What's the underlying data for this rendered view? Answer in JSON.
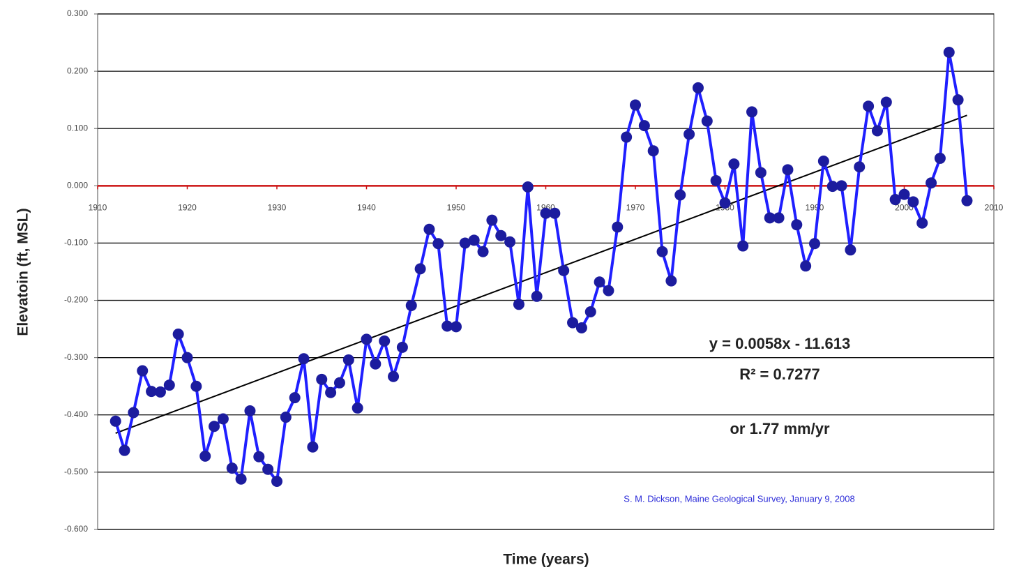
{
  "chart_data": {
    "type": "line",
    "x_label": "Time (years)",
    "y_label": "Elevatoin (ft, MSL)",
    "x": [
      1912,
      1913,
      1914,
      1915,
      1916,
      1917,
      1918,
      1919,
      1920,
      1921,
      1922,
      1923,
      1924,
      1925,
      1926,
      1927,
      1928,
      1929,
      1930,
      1931,
      1932,
      1933,
      1934,
      1935,
      1936,
      1937,
      1938,
      1939,
      1940,
      1941,
      1942,
      1943,
      1944,
      1945,
      1946,
      1947,
      1948,
      1949,
      1950,
      1951,
      1952,
      1953,
      1954,
      1955,
      1956,
      1957,
      1958,
      1959,
      1960,
      1961,
      1962,
      1963,
      1964,
      1965,
      1966,
      1967,
      1968,
      1969,
      1970,
      1971,
      1972,
      1973,
      1974,
      1975,
      1976,
      1977,
      1978,
      1979,
      1980,
      1981,
      1982,
      1983,
      1984,
      1985,
      1986,
      1987,
      1988,
      1989,
      1990,
      1991,
      1992,
      1993,
      1994,
      1995,
      1996,
      1997,
      1998,
      1999,
      2000,
      2001,
      2002,
      2003,
      2004,
      2005,
      2006,
      2007
    ],
    "series": [
      {
        "color": "#1f1fff",
        "marker_color": "#1c1c9e",
        "values": [
          -0.411,
          -0.462,
          -0.396,
          -0.323,
          -0.359,
          -0.36,
          -0.348,
          -0.259,
          -0.3,
          -0.35,
          -0.472,
          -0.42,
          -0.407,
          -0.493,
          -0.512,
          -0.393,
          -0.473,
          -0.495,
          -0.516,
          -0.404,
          -0.37,
          -0.302,
          -0.456,
          -0.338,
          -0.361,
          -0.344,
          -0.304,
          -0.388,
          -0.268,
          -0.311,
          -0.271,
          -0.333,
          -0.282,
          -0.209,
          -0.145,
          -0.076,
          -0.101,
          -0.245,
          -0.246,
          -0.1,
          -0.095,
          -0.115,
          -0.06,
          -0.087,
          -0.098,
          -0.207,
          -0.002,
          -0.193,
          -0.048,
          -0.048,
          -0.148,
          -0.239,
          -0.248,
          -0.22,
          -0.168,
          -0.183,
          -0.072,
          0.085,
          0.141,
          0.105,
          0.061,
          -0.115,
          -0.166,
          -0.016,
          0.09,
          0.171,
          0.113,
          0.009,
          -0.03,
          0.038,
          -0.105,
          0.129,
          0.023,
          -0.056,
          -0.056,
          0.028,
          -0.068,
          -0.14,
          -0.101,
          0.043,
          -0.001,
          0.0,
          -0.112,
          0.033,
          0.139,
          0.096,
          0.146,
          -0.024,
          -0.015,
          -0.028,
          -0.065,
          0.005,
          0.048,
          0.233,
          0.15,
          -0.026
        ]
      }
    ],
    "trendline": {
      "color": "#000000",
      "x": [
        1912,
        2007
      ],
      "values": [
        -0.432,
        0.123
      ]
    },
    "annotations": [
      "y = 0.0058x - 11.613",
      "R² = 0.7277",
      "or 1.77 mm/yr"
    ],
    "credit": "S. M. Dickson, Maine Geological Survey, January 9, 2008",
    "xlim": [
      1910,
      2010
    ],
    "xticks": [
      1910,
      1920,
      1930,
      1940,
      1950,
      1960,
      1970,
      1980,
      1990,
      2000,
      2010
    ],
    "ylim": [
      -0.6,
      0.3
    ],
    "yticks": [
      {
        "value": -0.6,
        "label": "-0.600"
      },
      {
        "value": -0.5,
        "label": "-0.500"
      },
      {
        "value": -0.4,
        "label": "-0.400"
      },
      {
        "value": -0.3,
        "label": "-0.300"
      },
      {
        "value": -0.2,
        "label": "-0.200"
      },
      {
        "value": -0.1,
        "label": "-0.100"
      },
      {
        "value": 0,
        "label": "0.000"
      },
      {
        "value": 0.1,
        "label": "0.100"
      },
      {
        "value": 0.2,
        "label": "0.200"
      },
      {
        "value": 0.3,
        "label": "0.300"
      }
    ],
    "grid": true,
    "zero_line_color": "#cc1111"
  }
}
